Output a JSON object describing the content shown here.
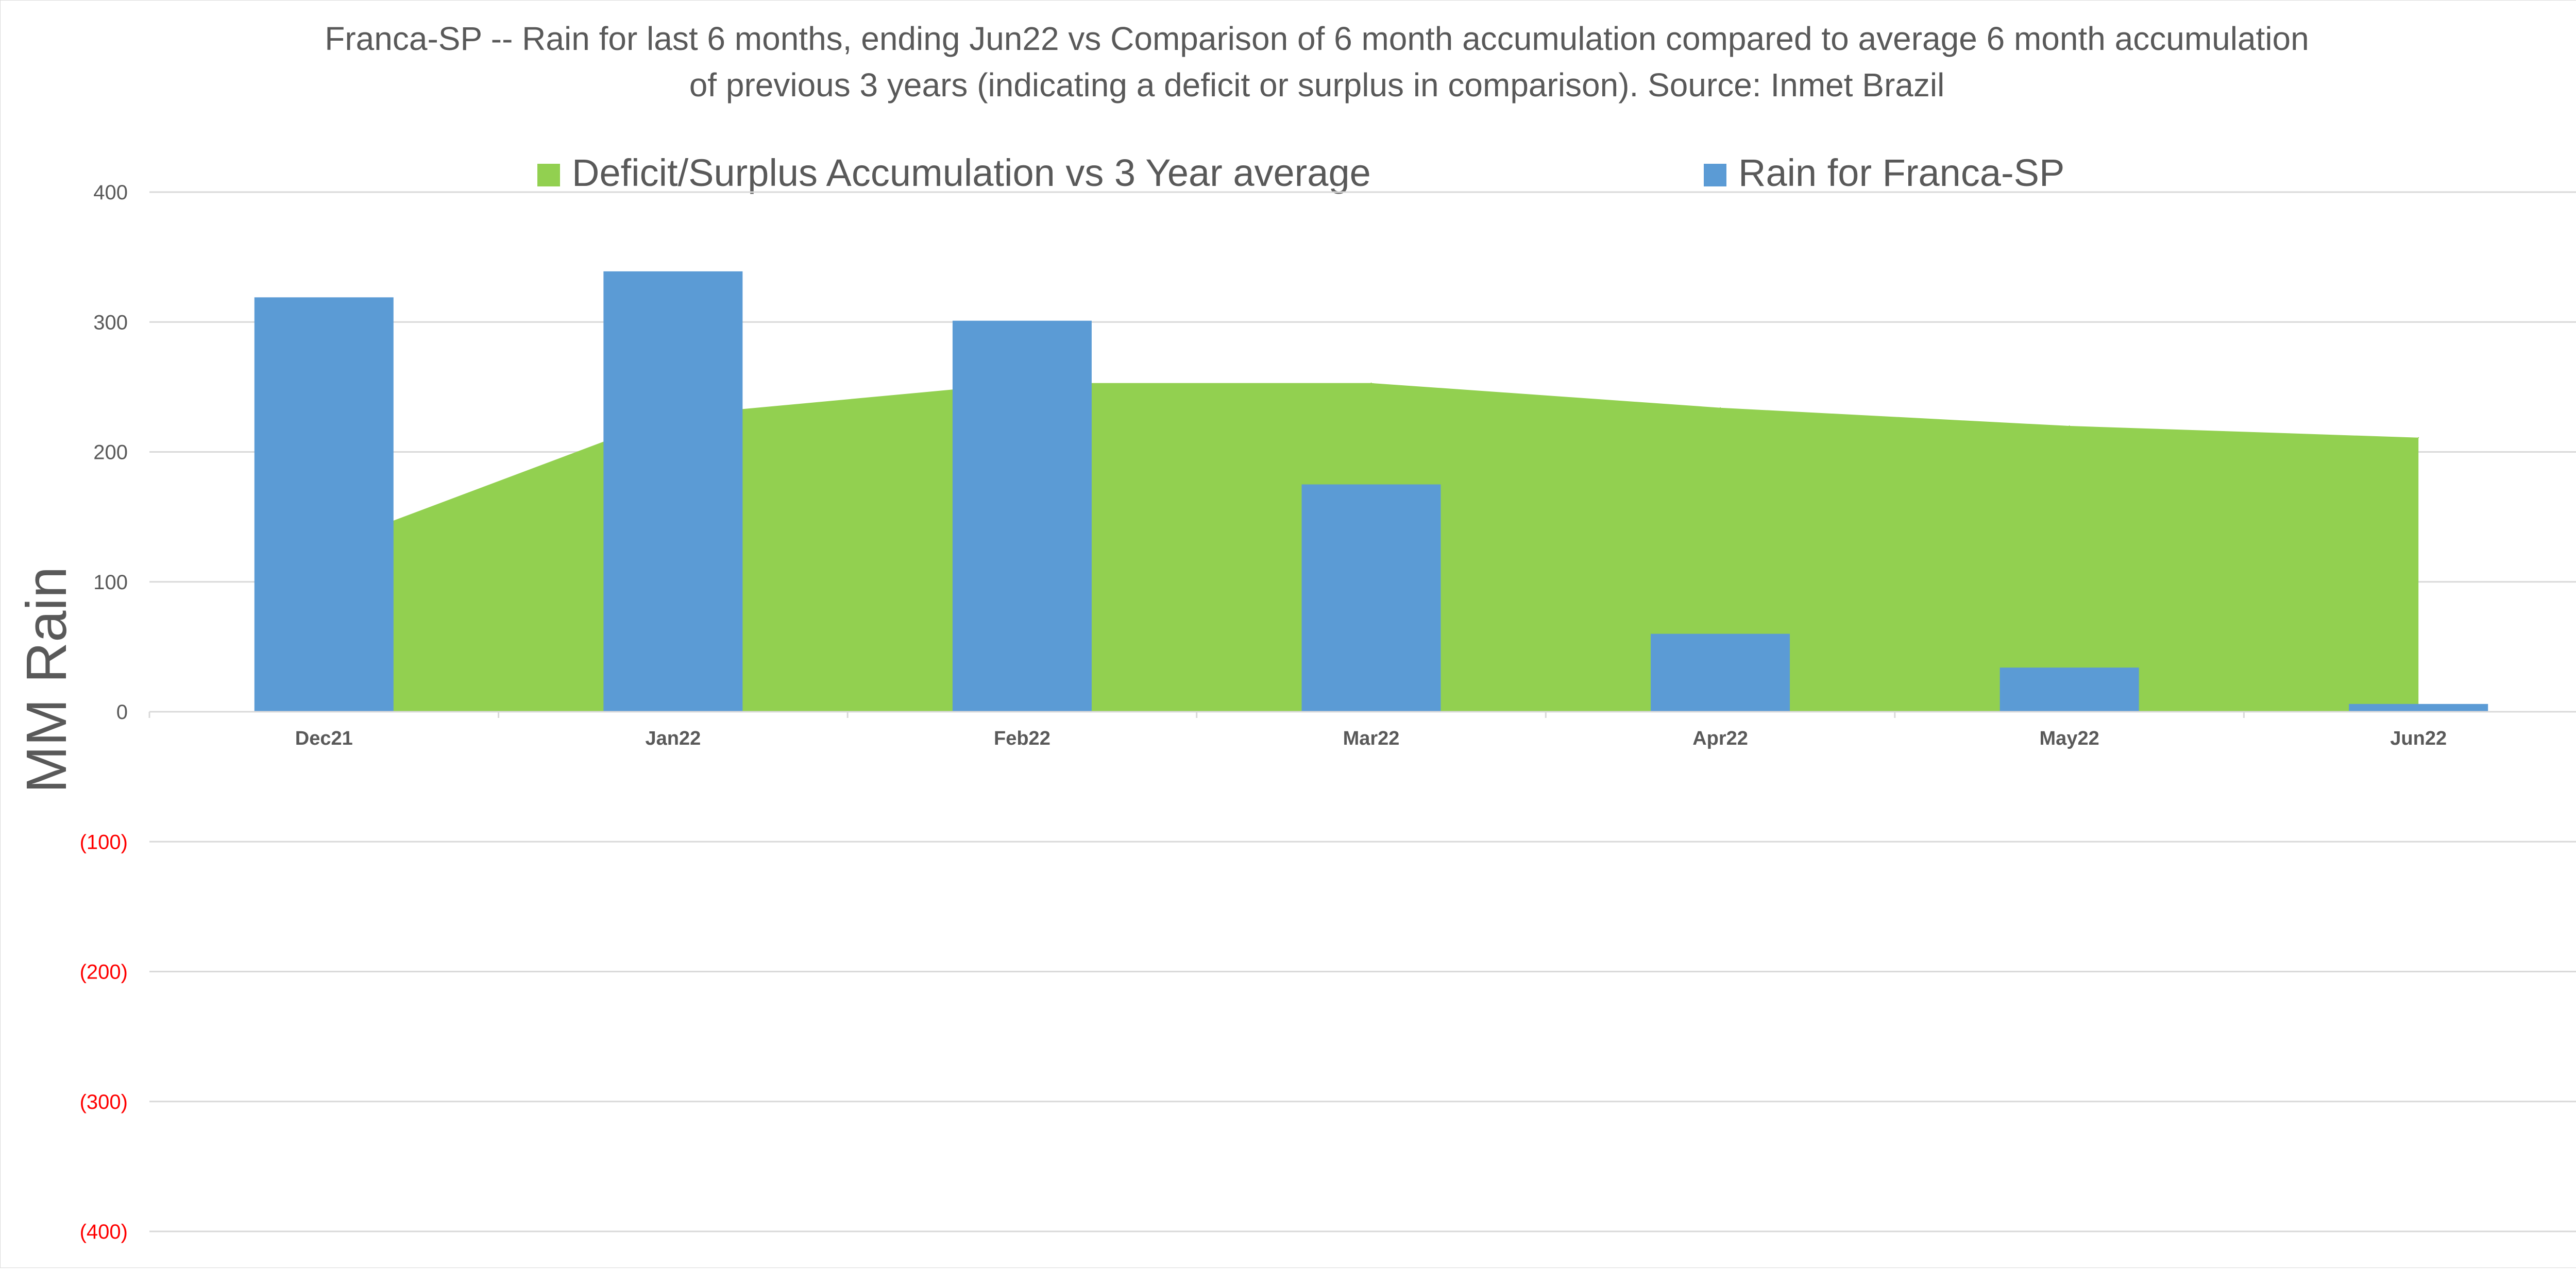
{
  "chart_data": {
    "type": "bar",
    "title": "Franca-SP -- Rain for last 6 months, ending Jun22  vs Comparison of 6 month accumulation compared to average 6 month accumulation of previous 3 years  (indicating a deficit or surplus in comparison). Source: Inmet Brazil",
    "title_lines": [
      "Franca-SP -- Rain for last 6 months, ending Jun22  vs Comparison of 6 month accumulation compared to average 6 month accumulation",
      "of previous 3 years  (indicating a deficit or surplus in comparison). Source: Inmet Brazil"
    ],
    "xlabel": "",
    "ylabel": "MM Rain",
    "categories": [
      "Dec21",
      "Jan22",
      "Feb22",
      "Mar22",
      "Apr22",
      "May22",
      "Jun22"
    ],
    "ylim": [
      -400,
      400
    ],
    "yticks": [
      400,
      300,
      200,
      100,
      0,
      -100,
      -200,
      -300,
      -400
    ],
    "ytick_labels": [
      "400",
      "300",
      "200",
      "100",
      "0",
      "(100)",
      "(200)",
      "(300)",
      "(400)"
    ],
    "grid": true,
    "legend_position": "top",
    "series": [
      {
        "name": "Deficit/Surplus Accumulation vs 3 Year average",
        "type": "area",
        "color": "#92d050",
        "values": [
          127,
          228,
          253,
          253,
          234,
          220,
          211
        ]
      },
      {
        "name": "Rain for Franca-SP",
        "type": "bar",
        "color": "#5b9bd5",
        "values": [
          319,
          339,
          301,
          175,
          60,
          34,
          6
        ]
      }
    ],
    "colors": {
      "text": "#595959",
      "negative_tick": "#ff0000",
      "gridline": "#d9d9d9"
    }
  }
}
